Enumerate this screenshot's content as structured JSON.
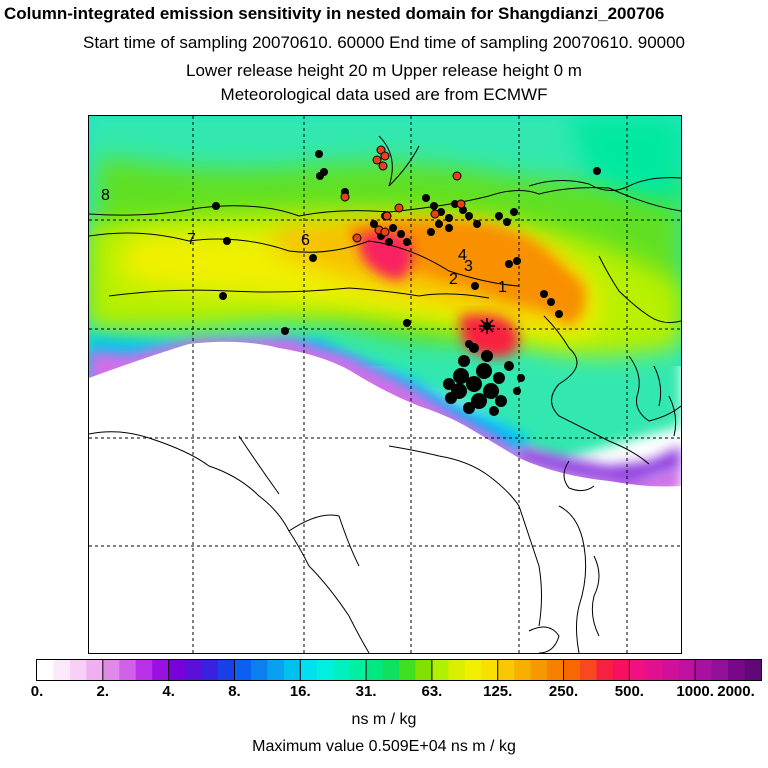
{
  "header": {
    "title": "Column-integrated emission sensitivity in nested domain for Shangdianzi_200706",
    "line2": "Start time of sampling 20070610. 60000     End time of sampling 20070610. 90000",
    "line3": "Lower release height   20 m          Upper release height    0 m",
    "line4": "Meteorological data used are from ECMWF"
  },
  "map": {
    "trajectory_labels": [
      "1",
      "2",
      "3",
      "4",
      "6",
      "7",
      "8"
    ],
    "receptor_symbol": "star",
    "point_colors": {
      "black": "#000000",
      "red": "#e8401a"
    }
  },
  "colorbar": {
    "tick_labels": [
      "0.",
      "2.",
      "4.",
      "8.",
      "16.",
      "31.",
      "63.",
      "125.",
      "250.",
      "500.",
      "1000.",
      "2000."
    ],
    "colors": [
      "#ffffff",
      "#fbe8fb",
      "#f7d0f7",
      "#f0b0f0",
      "#e08ae8",
      "#d060e8",
      "#b830e8",
      "#9a10e0",
      "#7800d8",
      "#5a10d8",
      "#3a20e0",
      "#1840e8",
      "#0a60f0",
      "#0a80f0",
      "#0aa0f0",
      "#00c0f0",
      "#00e0f0",
      "#00f0e0",
      "#00f0c0",
      "#00f0a0",
      "#00e880",
      "#10e060",
      "#40e020",
      "#80e000",
      "#b0f000",
      "#d8f000",
      "#f0f000",
      "#f8e000",
      "#f8c800",
      "#f8b000",
      "#f89800",
      "#f88000",
      "#f86800",
      "#f84820",
      "#f82040",
      "#f81060",
      "#f01080",
      "#e01090",
      "#d01098",
      "#c010a0",
      "#a810a0",
      "#901098",
      "#780888",
      "#600878"
    ],
    "units": "ns m / kg"
  },
  "footer": {
    "max_value": "Maximum value  0.509E+04 ns m / kg"
  }
}
